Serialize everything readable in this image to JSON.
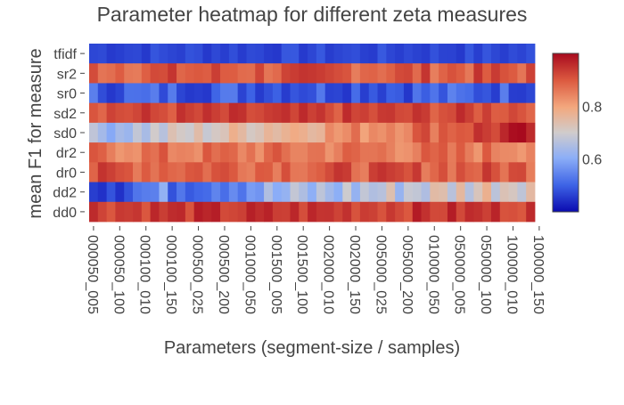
{
  "chart_data": {
    "type": "heatmap",
    "title": "Parameter heatmap for different zeta measures",
    "xlabel": "Parameters (segment-size / samples)",
    "ylabel": "mean F1 for measure",
    "rows": [
      "tfidf",
      "sr2",
      "sr0",
      "sd2",
      "sd0",
      "dr2",
      "dr0",
      "dd2",
      "dd0"
    ],
    "x_tick_labels": [
      "000050_005",
      "000050_100",
      "000100_010",
      "000100_150",
      "000500_025",
      "000500_200",
      "001000_050",
      "001500_005",
      "001500_100",
      "002000_010",
      "002000_150",
      "005000_025",
      "005000_200",
      "010000_050",
      "050000_005",
      "050000_100",
      "100000_010",
      "100000_150"
    ],
    "columns_count": 51,
    "tick_every_columns": 3,
    "colorscale": "coolwarm",
    "color_range": [
      0.4,
      1.0
    ],
    "colorbar_ticks": [
      0.6,
      0.8
    ],
    "rows_values": {
      "tfidf": {
        "base": 0.47,
        "variation": 0.02
      },
      "sr2": {
        "base": 0.9,
        "variation": 0.05
      },
      "sr0": {
        "base": 0.5,
        "variation": 0.05
      },
      "sd2": {
        "base": 0.92,
        "variation": 0.04
      },
      "sd0": {
        "start": 0.63,
        "end": 0.97,
        "variation": 0.05
      },
      "dr2": {
        "base": 0.86,
        "variation": 0.05
      },
      "dr0": {
        "base": 0.9,
        "variation": 0.05
      },
      "dd2": {
        "start": 0.5,
        "end": 0.76,
        "variation": 0.08
      },
      "dd0": {
        "base": 0.94,
        "variation": 0.04
      }
    }
  }
}
